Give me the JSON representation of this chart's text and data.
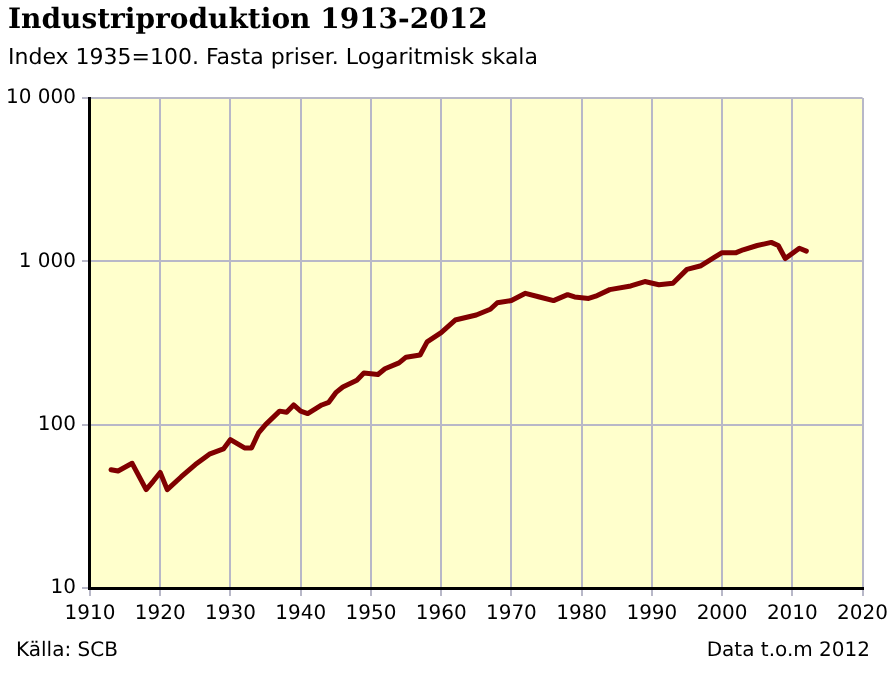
{
  "chart_data": {
    "type": "line",
    "title": "Industriproduktion 1913-2012",
    "subtitle": "Index 1935=100. Fasta priser. Logaritmisk skala",
    "annotations": [
      "Källa: SCB",
      "Data t.o.m 2012"
    ],
    "log": "y",
    "grid": true,
    "legend": false,
    "marker": "none",
    "line_style": "solid",
    "xlim": [
      1910,
      2020
    ],
    "xticks": [
      1910,
      1920,
      1930,
      1940,
      1950,
      1960,
      1970,
      1980,
      1990,
      2000,
      2010,
      2020
    ],
    "ylim": [
      10,
      10000
    ],
    "yticks": [
      10,
      100,
      {
        "value": 1000,
        "label": "1 000"
      },
      {
        "value": 10000,
        "label": "10 000"
      }
    ],
    "series": [
      {
        "color": "#800000",
        "x": [
          1913,
          1914,
          1916,
          1918,
          1919,
          1920,
          1921,
          1923,
          1925,
          1927,
          1929,
          1930,
          1932,
          1933,
          1934,
          1935,
          1937,
          1938,
          1939,
          1940,
          1941,
          1943,
          1944,
          1945,
          1946,
          1948,
          1949,
          1951,
          1952,
          1954,
          1955,
          1957,
          1958,
          1960,
          1962,
          1965,
          1967,
          1968,
          1970,
          1972,
          1974,
          1976,
          1978,
          1979,
          1981,
          1982,
          1984,
          1987,
          1989,
          1991,
          1993,
          1995,
          1997,
          1999,
          2000,
          2002,
          2003,
          2005,
          2007,
          2008,
          2009,
          2011,
          2012
        ],
        "values": [
          53,
          52,
          58,
          40,
          45,
          51,
          40,
          48,
          57,
          66,
          71,
          81,
          72,
          72,
          89,
          100,
          121,
          119,
          132,
          121,
          117,
          132,
          137,
          157,
          170,
          187,
          207,
          203,
          220,
          239,
          259,
          267,
          321,
          366,
          437,
          469,
          509,
          558,
          575,
          637,
          605,
          575,
          625,
          605,
          593,
          612,
          671,
          707,
          752,
          719,
          735,
          893,
          940,
          1064,
          1130,
          1130,
          1177,
          1250,
          1306,
          1250,
          1040,
          1202,
          1156
        ]
      }
    ]
  }
}
